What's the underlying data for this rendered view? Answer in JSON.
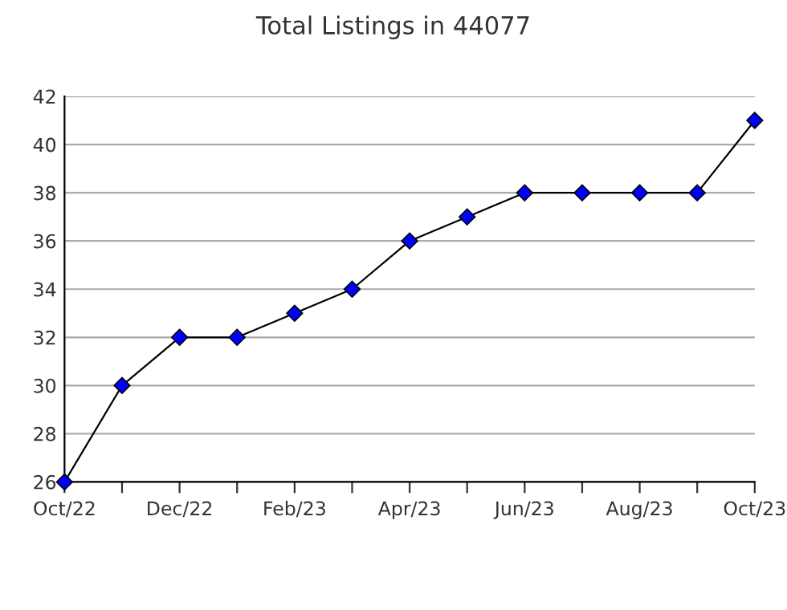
{
  "chart_data": {
    "type": "line",
    "title": "Total Listings in 44077",
    "categories": [
      "Oct/22",
      null,
      "Dec/22",
      null,
      "Feb/23",
      null,
      "Apr/23",
      null,
      "Jun/23",
      null,
      "Aug/23",
      null,
      "Oct/23"
    ],
    "series": [
      {
        "color": "#000000",
        "colors": [
          "#0000ff",
          "#0000ff",
          "#0000ff",
          "#0000ff",
          "#0000ff",
          "#0000ff",
          "#0000ff",
          "#0000ff",
          "#0000ff",
          "#0000ff",
          "#0000ff",
          "#0000ff",
          "#0000ff"
        ],
        "values": [
          26,
          30,
          32,
          32,
          33,
          34,
          36,
          37,
          38,
          38,
          38,
          38,
          41
        ]
      }
    ],
    "ylim": [
      26,
      42
    ],
    "yticks": [
      26,
      28,
      30,
      32,
      34,
      36,
      38,
      40,
      42
    ],
    "grid": "y",
    "marker": "diamond",
    "line_style": "solid",
    "legend": false
  }
}
